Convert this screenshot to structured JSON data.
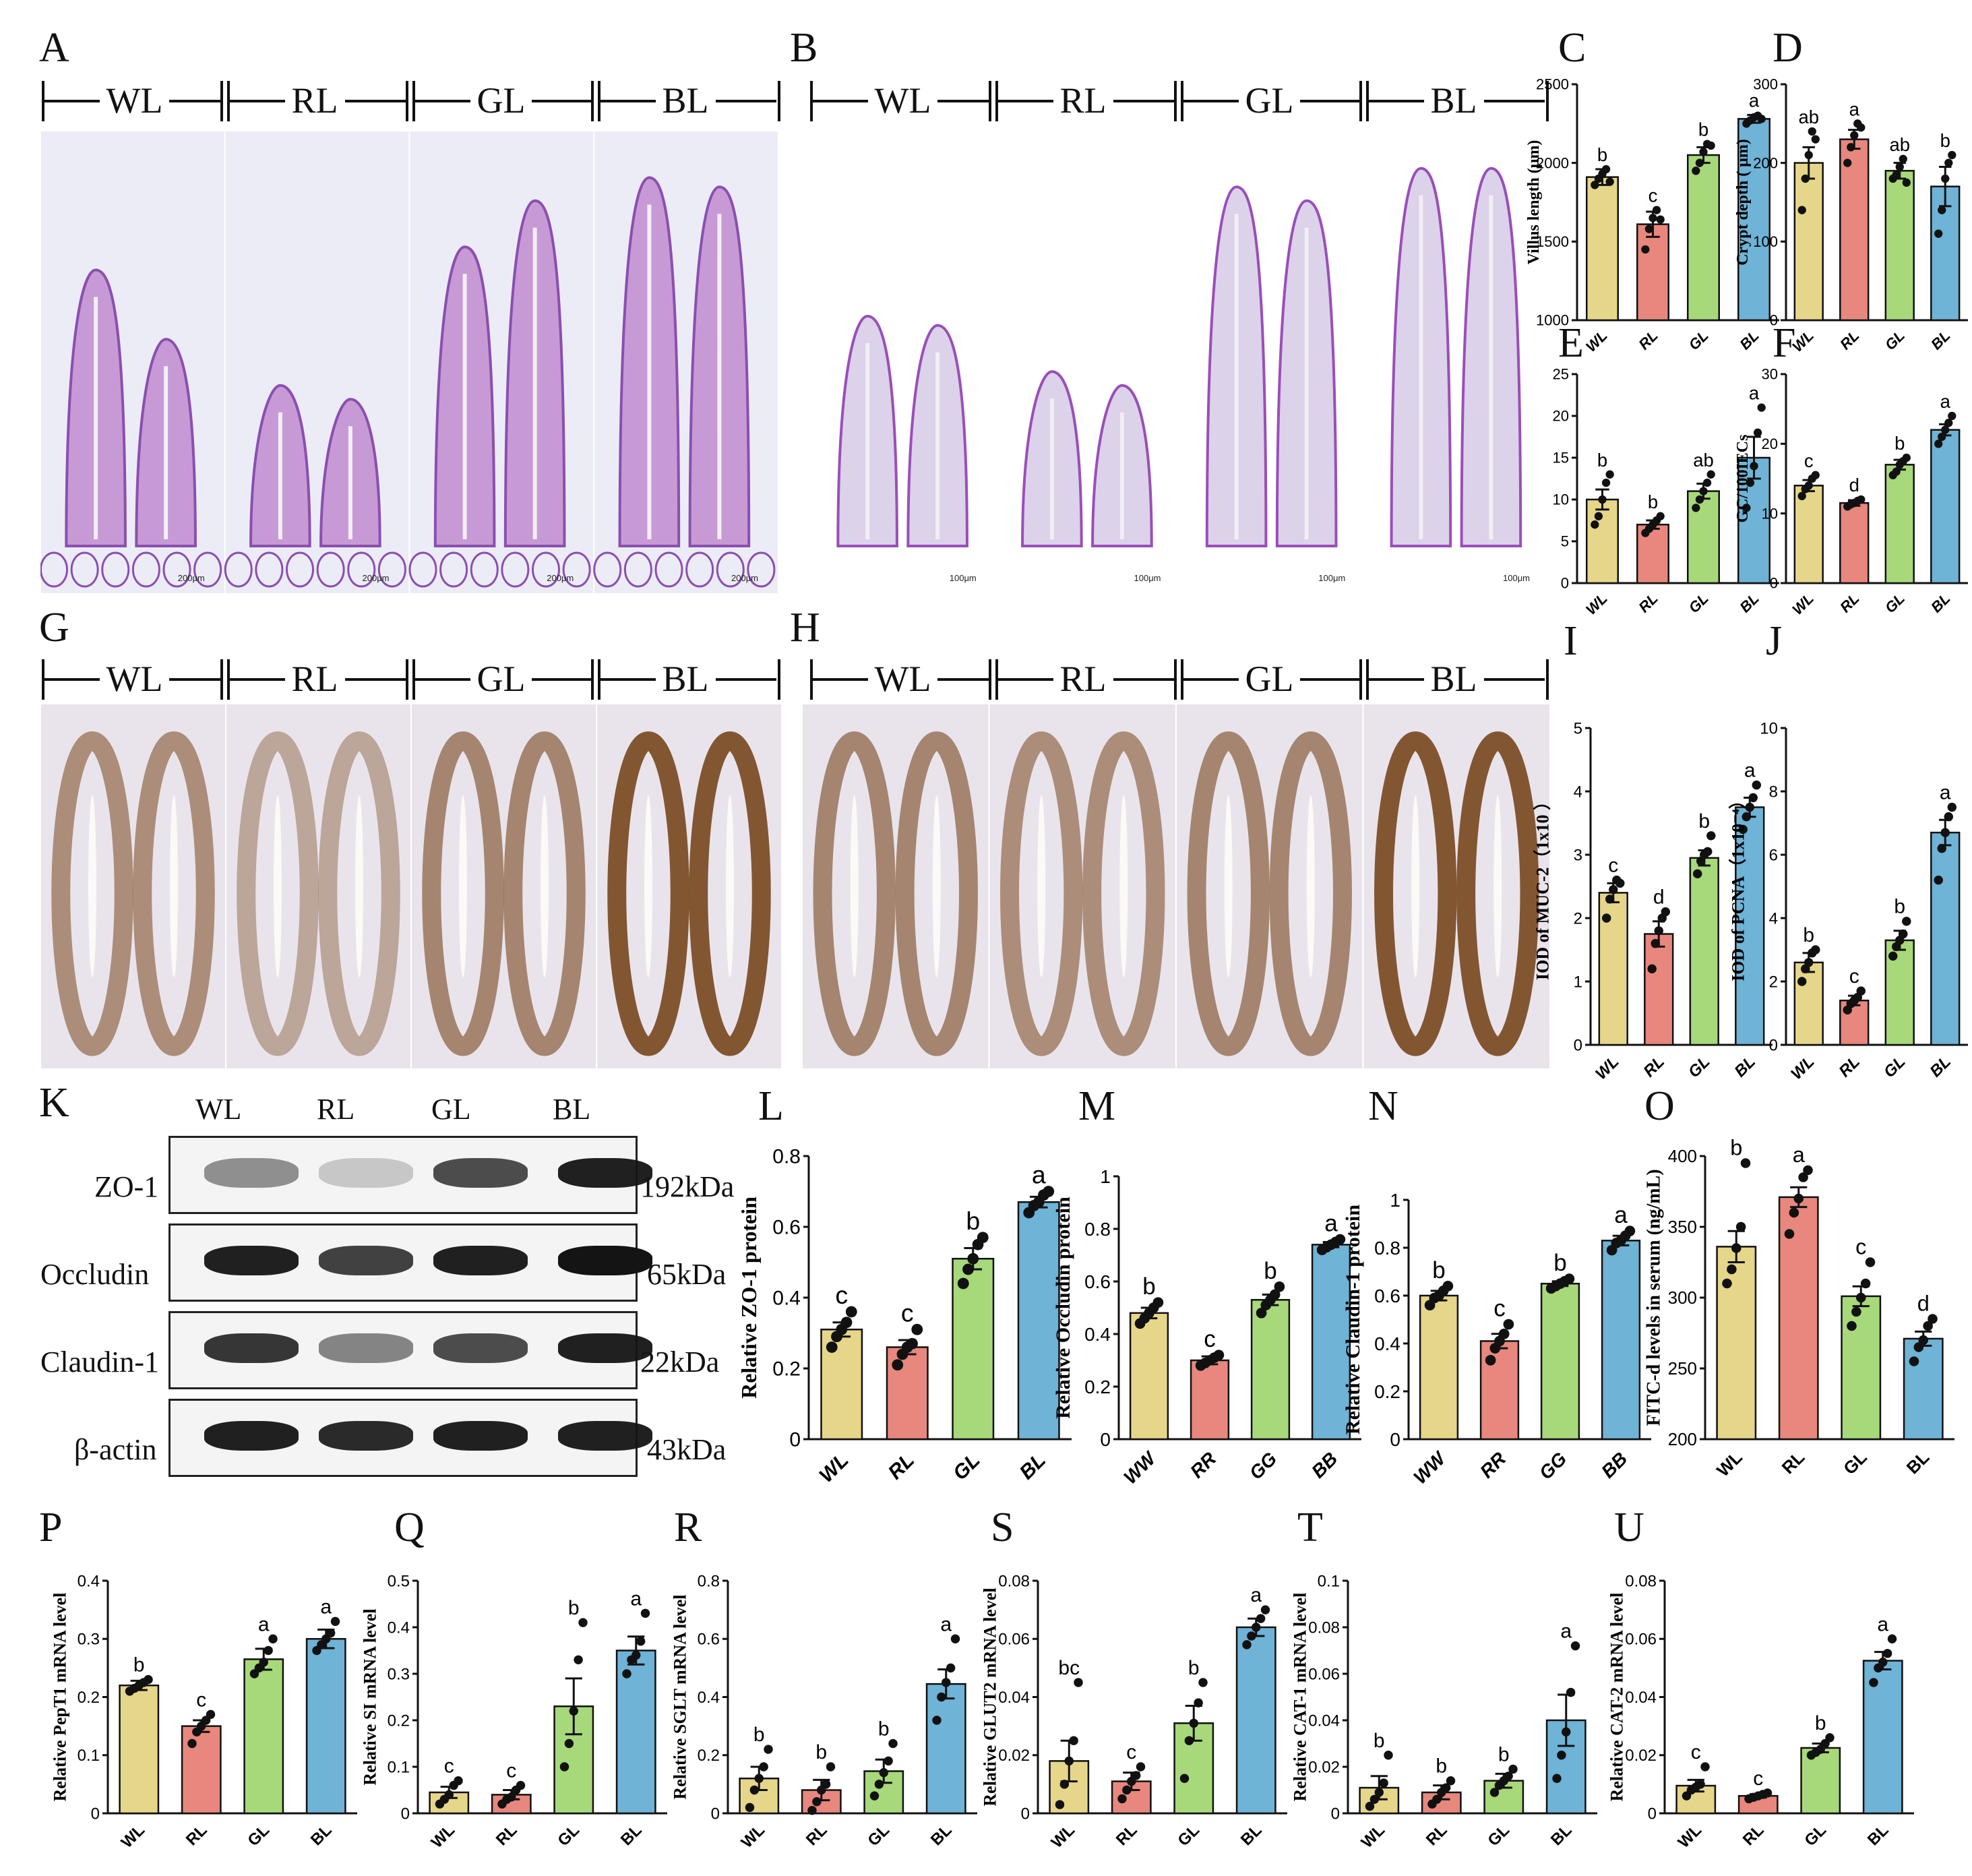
{
  "panel_letters": [
    "A",
    "B",
    "C",
    "D",
    "E",
    "F",
    "G",
    "H",
    "I",
    "J",
    "K",
    "L",
    "M",
    "N",
    "O",
    "P",
    "Q",
    "R",
    "S",
    "T",
    "U"
  ],
  "groups": [
    "WL",
    "RL",
    "GL",
    "BL"
  ],
  "scale_bars": {
    "A": "200μm",
    "B": "100μm",
    "G": "",
    "H": ""
  },
  "colors": {
    "WL": "#e6d68a",
    "RL": "#e8877d",
    "GL": "#a7d97a",
    "BL": "#6fb3d6"
  },
  "western_blot": {
    "lanes": [
      "WL",
      "RL",
      "GL",
      "BL"
    ],
    "proteins": [
      {
        "name": "ZO-1",
        "size": "192kDa",
        "intensity": [
          0.45,
          0.2,
          0.75,
          0.95
        ]
      },
      {
        "name": "Occludin",
        "size": "65kDa",
        "intensity": [
          0.95,
          0.8,
          0.95,
          1.0
        ]
      },
      {
        "name": "Claudin-1",
        "size": "22kDa",
        "intensity": [
          0.85,
          0.5,
          0.75,
          0.95
        ]
      },
      {
        "name": "β-actin",
        "size": "43kDa",
        "intensity": [
          0.95,
          0.9,
          0.95,
          0.95
        ]
      }
    ]
  },
  "chart_data": [
    {
      "id": "C",
      "type": "bar",
      "categories": [
        "WL",
        "RL",
        "GL",
        "BL"
      ],
      "values": [
        1910,
        1610,
        2050,
        2280
      ],
      "errors": [
        50,
        80,
        50,
        25
      ],
      "letters": [
        "b",
        "c",
        "b",
        "a"
      ],
      "ylabel": "Villus length (μm)",
      "ylim": [
        1000,
        2500
      ],
      "yticks": [
        1000,
        1500,
        2000,
        2500
      ],
      "points": [
        [
          1860,
          1900,
          1930,
          1960,
          1880
        ],
        [
          1450,
          1580,
          1650,
          1700,
          1640
        ],
        [
          1950,
          2000,
          2070,
          2120,
          2110
        ],
        [
          2250,
          2270,
          2290,
          2300,
          2280
        ]
      ]
    },
    {
      "id": "D",
      "type": "bar",
      "categories": [
        "WL",
        "RL",
        "GL",
        "BL"
      ],
      "values": [
        200,
        230,
        190,
        170
      ],
      "errors": [
        20,
        12,
        10,
        25
      ],
      "letters": [
        "ab",
        "a",
        "ab",
        "b"
      ],
      "ylabel": "Crypt depth ( μm)",
      "ylim": [
        0,
        300
      ],
      "yticks": [
        0,
        100,
        200,
        300
      ],
      "points": [
        [
          140,
          180,
          210,
          240,
          230
        ],
        [
          200,
          220,
          235,
          250,
          245
        ],
        [
          180,
          185,
          195,
          205,
          175
        ],
        [
          110,
          140,
          180,
          200,
          210
        ]
      ]
    },
    {
      "id": "E",
      "type": "bar",
      "categories": [
        "WL",
        "RL",
        "GL",
        "BL"
      ],
      "values": [
        10,
        7,
        11,
        15
      ],
      "errors": [
        1.2,
        0.5,
        0.9,
        2.5
      ],
      "letters": [
        "b",
        "b",
        "ab",
        "a"
      ],
      "ylabel": "",
      "ylim": [
        0,
        25
      ],
      "yticks": [
        0,
        5,
        10,
        15,
        20,
        25
      ],
      "points": [
        [
          7,
          8,
          10,
          12,
          13
        ],
        [
          6,
          6.5,
          7,
          7.5,
          8
        ],
        [
          9,
          10,
          11,
          12,
          13
        ],
        [
          9,
          12,
          14,
          18,
          21
        ]
      ]
    },
    {
      "id": "F",
      "type": "bar",
      "categories": [
        "WL",
        "RL",
        "GL",
        "BL"
      ],
      "values": [
        14,
        11.5,
        17,
        22
      ],
      "errors": [
        0.8,
        0.4,
        0.7,
        0.8
      ],
      "letters": [
        "c",
        "d",
        "b",
        "a"
      ],
      "ylabel": "GC/100IECs",
      "ylim": [
        0,
        30
      ],
      "yticks": [
        0,
        10,
        20,
        30
      ],
      "points": [
        [
          12.5,
          13.5,
          14,
          15,
          15.5
        ],
        [
          11,
          11.3,
          11.5,
          11.8,
          12
        ],
        [
          15.5,
          16,
          17,
          17.5,
          18
        ],
        [
          20,
          21,
          22,
          23,
          24
        ]
      ]
    },
    {
      "id": "I",
      "type": "bar",
      "categories": [
        "WL",
        "RL",
        "GL",
        "BL"
      ],
      "values": [
        2.4,
        1.75,
        2.95,
        3.75
      ],
      "errors": [
        0.15,
        0.2,
        0.12,
        0.15
      ],
      "letters": [
        "c",
        "d",
        "b",
        "a"
      ],
      "ylabel": "IOD of MUC-2（1x10  ）",
      "ylim": [
        0,
        5
      ],
      "yticks": [
        0,
        1,
        2,
        3,
        4,
        5
      ],
      "points": [
        [
          2.0,
          2.3,
          2.45,
          2.6,
          2.55
        ],
        [
          1.2,
          1.6,
          1.8,
          2.0,
          2.1
        ],
        [
          2.7,
          2.9,
          3.0,
          3.05,
          3.3
        ],
        [
          3.4,
          3.6,
          3.75,
          3.9,
          4.1
        ]
      ]
    },
    {
      "id": "J",
      "type": "bar",
      "categories": [
        "WL",
        "RL",
        "GL",
        "BL"
      ],
      "values": [
        2.6,
        1.4,
        3.3,
        6.7
      ],
      "errors": [
        0.3,
        0.15,
        0.3,
        0.4
      ],
      "letters": [
        "b",
        "c",
        "b",
        "a"
      ],
      "ylabel": "IOD of PCNA（1x10⁻⁴）",
      "ylim": [
        0,
        10
      ],
      "yticks": [
        0,
        2,
        4,
        6,
        8,
        10
      ],
      "points": [
        [
          2.0,
          2.4,
          2.6,
          2.9,
          3.0
        ],
        [
          1.1,
          1.3,
          1.4,
          1.5,
          1.7
        ],
        [
          2.8,
          3.1,
          3.3,
          3.5,
          3.9
        ],
        [
          5.2,
          6.2,
          6.7,
          7.2,
          7.5
        ]
      ]
    },
    {
      "id": "L",
      "type": "bar",
      "categories": [
        "WL",
        "RL",
        "GL",
        "BL"
      ],
      "values": [
        0.31,
        0.26,
        0.51,
        0.67
      ],
      "errors": [
        0.02,
        0.02,
        0.03,
        0.015
      ],
      "letters": [
        "c",
        "c",
        "b",
        "a"
      ],
      "ylabel": "Relative ZO-1  protein",
      "ylim": [
        0,
        0.8
      ],
      "yticks": [
        0,
        0.2,
        0.4,
        0.6,
        0.8
      ],
      "points": [
        [
          0.26,
          0.29,
          0.31,
          0.33,
          0.36
        ],
        [
          0.21,
          0.24,
          0.26,
          0.27,
          0.31
        ],
        [
          0.44,
          0.48,
          0.51,
          0.55,
          0.57
        ],
        [
          0.64,
          0.66,
          0.67,
          0.69,
          0.7
        ]
      ]
    },
    {
      "id": "M",
      "type": "bar",
      "categories": [
        "WW",
        "RR",
        "GG",
        "BB"
      ],
      "values": [
        0.48,
        0.3,
        0.53,
        0.74
      ],
      "errors": [
        0.02,
        0.015,
        0.02,
        0.01
      ],
      "letters": [
        "b",
        "c",
        "b",
        "a"
      ],
      "ylabel": "Relative Occludin protein",
      "ylim": [
        0,
        1.0
      ],
      "yticks": [
        0,
        0.2,
        0.4,
        0.6,
        0.8,
        1.0
      ],
      "points": [
        [
          0.44,
          0.46,
          0.48,
          0.5,
          0.52
        ],
        [
          0.28,
          0.29,
          0.3,
          0.31,
          0.32
        ],
        [
          0.48,
          0.51,
          0.53,
          0.55,
          0.58
        ],
        [
          0.72,
          0.73,
          0.74,
          0.75,
          0.76
        ]
      ]
    },
    {
      "id": "N",
      "type": "bar",
      "categories": [
        "WW",
        "RR",
        "GG",
        "BB"
      ],
      "values": [
        0.6,
        0.41,
        0.65,
        0.83
      ],
      "errors": [
        0.02,
        0.03,
        0.01,
        0.02
      ],
      "letters": [
        "b",
        "c",
        "b",
        "a"
      ],
      "ylabel": "Relative Claudin-1  protein",
      "ylim": [
        0,
        1.0
      ],
      "yticks": [
        0,
        0.2,
        0.4,
        0.6,
        0.8,
        1.0
      ],
      "points": [
        [
          0.56,
          0.59,
          0.6,
          0.62,
          0.64
        ],
        [
          0.33,
          0.38,
          0.41,
          0.44,
          0.48
        ],
        [
          0.63,
          0.64,
          0.65,
          0.66,
          0.67
        ],
        [
          0.79,
          0.82,
          0.83,
          0.85,
          0.87
        ]
      ]
    },
    {
      "id": "O",
      "type": "bar",
      "categories": [
        "WL",
        "RL",
        "GL",
        "BL"
      ],
      "values": [
        336,
        371,
        301,
        271
      ],
      "errors": [
        11,
        7,
        7,
        5
      ],
      "letters": [
        "b",
        "a",
        "c",
        "d"
      ],
      "ylabel": "FITC-d levels in serum (ng/mL)",
      "ylim": [
        200,
        400
      ],
      "yticks": [
        200,
        250,
        300,
        350,
        400
      ],
      "points": [
        [
          310,
          320,
          335,
          350,
          395
        ],
        [
          345,
          360,
          370,
          385,
          390
        ],
        [
          280,
          290,
          300,
          310,
          325
        ],
        [
          255,
          265,
          270,
          280,
          285
        ]
      ]
    },
    {
      "id": "P",
      "type": "bar",
      "categories": [
        "WL",
        "RL",
        "GL",
        "BL"
      ],
      "values": [
        0.22,
        0.15,
        0.265,
        0.3
      ],
      "errors": [
        0.008,
        0.01,
        0.018,
        0.016
      ],
      "letters": [
        "b",
        "c",
        "a",
        "a"
      ],
      "ylabel": "Relative PepT1 mRNA level",
      "ylim": [
        0,
        0.4
      ],
      "yticks": [
        0,
        0.1,
        0.2,
        0.3,
        0.4
      ],
      "points": [
        [
          0.21,
          0.215,
          0.22,
          0.225,
          0.23
        ],
        [
          0.12,
          0.14,
          0.15,
          0.16,
          0.17
        ],
        [
          0.24,
          0.25,
          0.26,
          0.28,
          0.3
        ],
        [
          0.28,
          0.29,
          0.3,
          0.31,
          0.33
        ]
      ]
    },
    {
      "id": "Q",
      "type": "bar",
      "categories": [
        "WL",
        "RL",
        "GL",
        "BL"
      ],
      "values": [
        0.045,
        0.04,
        0.23,
        0.35
      ],
      "errors": [
        0.012,
        0.01,
        0.06,
        0.03
      ],
      "letters": [
        "c",
        "c",
        "b",
        "a"
      ],
      "ylabel": "Relative SI mRNA level",
      "ylim": [
        0,
        0.5
      ],
      "yticks": [
        0,
        0.1,
        0.2,
        0.3,
        0.4,
        0.5
      ],
      "points": [
        [
          0.02,
          0.03,
          0.04,
          0.06,
          0.07
        ],
        [
          0.02,
          0.03,
          0.035,
          0.05,
          0.06
        ],
        [
          0.1,
          0.15,
          0.22,
          0.33,
          0.41
        ],
        [
          0.3,
          0.33,
          0.34,
          0.37,
          0.43
        ]
      ]
    },
    {
      "id": "R",
      "type": "bar",
      "categories": [
        "WL",
        "RL",
        "GL",
        "BL"
      ],
      "values": [
        0.12,
        0.08,
        0.145,
        0.445
      ],
      "errors": [
        0.04,
        0.035,
        0.04,
        0.05
      ],
      "letters": [
        "b",
        "b",
        "b",
        "a"
      ],
      "ylabel": "Relative SGLT mRNA level",
      "ylim": [
        0,
        0.8
      ],
      "yticks": [
        0,
        0.2,
        0.4,
        0.6,
        0.8
      ],
      "points": [
        [
          0.02,
          0.08,
          0.12,
          0.16,
          0.22
        ],
        [
          0.01,
          0.04,
          0.08,
          0.1,
          0.16
        ],
        [
          0.06,
          0.1,
          0.14,
          0.18,
          0.24
        ],
        [
          0.32,
          0.4,
          0.45,
          0.5,
          0.6
        ]
      ]
    },
    {
      "id": "S",
      "type": "bar",
      "categories": [
        "WL",
        "RL",
        "GL",
        "BL"
      ],
      "values": [
        0.018,
        0.011,
        0.031,
        0.064
      ],
      "errors": [
        0.007,
        0.003,
        0.006,
        0.003
      ],
      "letters": [
        "bc",
        "c",
        "b",
        "a"
      ],
      "ylabel": "Relative GLUT2 mRNA level",
      "ylim": [
        0,
        0.08
      ],
      "yticks": [
        0,
        0.02,
        0.04,
        0.06,
        0.08
      ],
      "points": [
        [
          0.003,
          0.01,
          0.018,
          0.025,
          0.045
        ],
        [
          0.005,
          0.008,
          0.011,
          0.013,
          0.016
        ],
        [
          0.012,
          0.025,
          0.031,
          0.038,
          0.045
        ],
        [
          0.058,
          0.061,
          0.064,
          0.067,
          0.07
        ]
      ]
    },
    {
      "id": "T",
      "type": "bar",
      "categories": [
        "WL",
        "RL",
        "GL",
        "BL"
      ],
      "values": [
        0.011,
        0.009,
        0.014,
        0.04
      ],
      "errors": [
        0.005,
        0.003,
        0.003,
        0.011
      ],
      "letters": [
        "b",
        "b",
        "b",
        "a"
      ],
      "ylabel": "Relative CAT-1 mRNA level",
      "ylim": [
        0,
        0.1
      ],
      "yticks": [
        0,
        0.02,
        0.04,
        0.06,
        0.08,
        0.1
      ],
      "points": [
        [
          0.003,
          0.006,
          0.009,
          0.013,
          0.025
        ],
        [
          0.004,
          0.006,
          0.009,
          0.011,
          0.014
        ],
        [
          0.009,
          0.012,
          0.014,
          0.016,
          0.019
        ],
        [
          0.015,
          0.025,
          0.035,
          0.052,
          0.072
        ]
      ]
    },
    {
      "id": "U",
      "type": "bar",
      "categories": [
        "WL",
        "RL",
        "GL",
        "BL"
      ],
      "values": [
        0.0095,
        0.006,
        0.0225,
        0.0525
      ],
      "errors": [
        0.002,
        0.0006,
        0.0015,
        0.003
      ],
      "letters": [
        "c",
        "c",
        "b",
        "a"
      ],
      "ylabel": "Relative CAT-2 mRNA level",
      "ylim": [
        0,
        0.08
      ],
      "yticks": [
        0,
        0.02,
        0.04,
        0.06,
        0.08
      ],
      "points": [
        [
          0.006,
          0.008,
          0.009,
          0.01,
          0.016
        ],
        [
          0.005,
          0.0055,
          0.006,
          0.0065,
          0.007
        ],
        [
          0.02,
          0.021,
          0.022,
          0.024,
          0.026
        ],
        [
          0.045,
          0.05,
          0.052,
          0.055,
          0.06
        ]
      ]
    }
  ]
}
